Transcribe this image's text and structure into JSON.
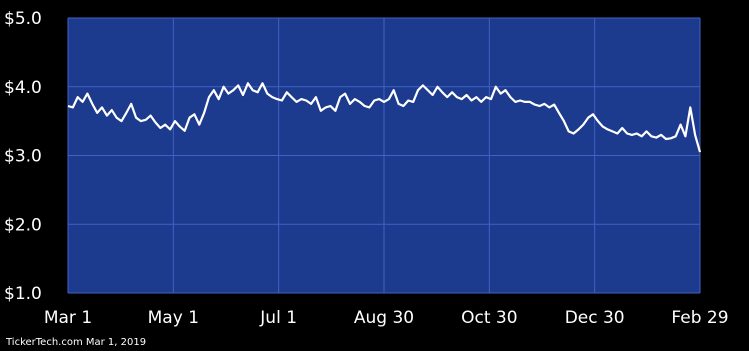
{
  "chart_data": {
    "type": "line",
    "title": "",
    "xlabel": "",
    "ylabel": "",
    "ylim": [
      1.0,
      5.0
    ],
    "y_ticks": [
      {
        "value": 5.0,
        "label": "$5.0"
      },
      {
        "value": 4.0,
        "label": "$4.0"
      },
      {
        "value": 3.0,
        "label": "$3.0"
      },
      {
        "value": 2.0,
        "label": "$2.0"
      },
      {
        "value": 1.0,
        "label": "$1.0"
      }
    ],
    "x_ticks": [
      "Mar 1",
      "May 1",
      "Jul 1",
      "Aug 30",
      "Oct 30",
      "Dec 30",
      "Feb 29"
    ],
    "grid": true,
    "colors": {
      "background": "#1c3a8e",
      "grid": "#3f63c4",
      "line": "#ffffff"
    },
    "series": [
      {
        "values": [
          3.72,
          3.7,
          3.85,
          3.78,
          3.9,
          3.75,
          3.62,
          3.7,
          3.58,
          3.66,
          3.55,
          3.5,
          3.62,
          3.75,
          3.55,
          3.5,
          3.52,
          3.58,
          3.48,
          3.4,
          3.45,
          3.38,
          3.5,
          3.42,
          3.36,
          3.55,
          3.6,
          3.45,
          3.62,
          3.85,
          3.95,
          3.82,
          4.0,
          3.9,
          3.95,
          4.02,
          3.88,
          4.05,
          3.95,
          3.92,
          4.05,
          3.9,
          3.85,
          3.82,
          3.8,
          3.92,
          3.85,
          3.78,
          3.82,
          3.8,
          3.75,
          3.85,
          3.65,
          3.7,
          3.72,
          3.65,
          3.85,
          3.9,
          3.75,
          3.82,
          3.78,
          3.72,
          3.7,
          3.8,
          3.82,
          3.78,
          3.82,
          3.95,
          3.75,
          3.72,
          3.8,
          3.78,
          3.95,
          4.02,
          3.95,
          3.88,
          4.0,
          3.92,
          3.85,
          3.92,
          3.85,
          3.82,
          3.88,
          3.8,
          3.85,
          3.78,
          3.85,
          3.82,
          4.0,
          3.9,
          3.95,
          3.85,
          3.78,
          3.8,
          3.78,
          3.78,
          3.74,
          3.72,
          3.75,
          3.7,
          3.74,
          3.62,
          3.5,
          3.35,
          3.32,
          3.38,
          3.45,
          3.55,
          3.6,
          3.5,
          3.42,
          3.38,
          3.35,
          3.32,
          3.4,
          3.32,
          3.3,
          3.32,
          3.28,
          3.35,
          3.28,
          3.26,
          3.3,
          3.24,
          3.25,
          3.28,
          3.45,
          3.28,
          3.7,
          3.3,
          3.05
        ]
      }
    ]
  },
  "footer": {
    "credit": "TickerTech.com Mar 1, 2019"
  }
}
